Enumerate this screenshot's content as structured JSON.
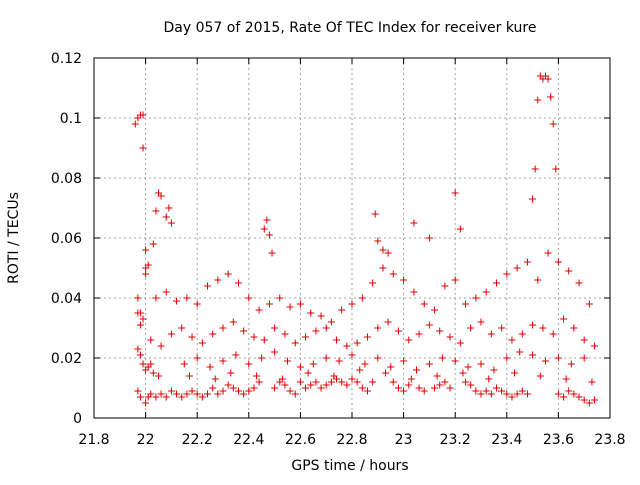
{
  "chart_data": {
    "type": "scatter",
    "title": "Day 057 of 2015, Rate Of TEC Index for receiver kure",
    "xlabel": "GPS time / hours",
    "ylabel": "ROTI / TECUs",
    "xlim": [
      21.8,
      23.8
    ],
    "ylim": [
      0,
      0.12
    ],
    "xticks": [
      "21.8",
      "22",
      "22.2",
      "22.4",
      "22.6",
      "22.8",
      "23",
      "23.2",
      "23.4",
      "23.6",
      "23.8"
    ],
    "yticks": [
      "0",
      "0.02",
      "0.04",
      "0.06",
      "0.08",
      "0.1",
      "0.12"
    ],
    "grid": true,
    "marker": "+",
    "colors": {
      "marker": "#e00000",
      "grid": "#a0a0a0",
      "axis": "#000000"
    },
    "series": [
      {
        "x": [
          21.96,
          21.97,
          21.98,
          21.99,
          21.99,
          22.0,
          21.97,
          21.98,
          21.99,
          22.0,
          22.01,
          22.03,
          22.04,
          22.05,
          22.06,
          22.08,
          22.09,
          22.1,
          21.97,
          21.98,
          21.99,
          22.0,
          22.01,
          22.02,
          22.03,
          22.05,
          21.97,
          21.98,
          22.0,
          22.01,
          22.02,
          22.04,
          22.06,
          22.08,
          22.1,
          22.12,
          22.14,
          22.16,
          22.18,
          22.2,
          22.22,
          22.24,
          22.26,
          22.28,
          22.3,
          22.32,
          22.34,
          22.36,
          22.38,
          22.4,
          22.42,
          22.44,
          22.46,
          22.47,
          22.48,
          22.49,
          22.5,
          22.52,
          22.54,
          22.56,
          22.58,
          22.6,
          22.62,
          22.64,
          22.66,
          22.68,
          22.7,
          22.72,
          22.74,
          22.76,
          22.78,
          22.8,
          22.82,
          22.84,
          22.86,
          22.88,
          22.89,
          22.9,
          22.92,
          22.94,
          22.96,
          22.98,
          23.0,
          23.02,
          23.04,
          23.06,
          23.08,
          23.1,
          23.12,
          23.14,
          23.16,
          23.18,
          23.2,
          23.22,
          23.24,
          23.26,
          23.28,
          23.3,
          23.32,
          23.34,
          23.36,
          23.38,
          23.4,
          23.42,
          23.44,
          23.46,
          23.48,
          23.5,
          23.51,
          23.52,
          23.53,
          23.54,
          23.55,
          23.56,
          23.57,
          23.58,
          23.59,
          23.6,
          23.62,
          23.64,
          23.66,
          23.68,
          23.7,
          23.72,
          23.74,
          21.97,
          22.0,
          22.04,
          22.08,
          22.12,
          22.16,
          22.2,
          22.24,
          22.28,
          22.32,
          22.36,
          22.4,
          22.44,
          22.48,
          22.52,
          22.56,
          22.6,
          22.64,
          22.68,
          22.72,
          22.76,
          22.8,
          22.84,
          22.88,
          22.92,
          22.96,
          23.0,
          23.04,
          23.08,
          23.12,
          23.16,
          23.2,
          23.24,
          23.28,
          23.32,
          23.36,
          23.4,
          23.44,
          23.48,
          23.52,
          23.56,
          23.6,
          23.64,
          23.68,
          23.72,
          21.98,
          22.02,
          22.06,
          22.1,
          22.14,
          22.18,
          22.22,
          22.26,
          22.3,
          22.34,
          22.38,
          22.42,
          22.46,
          22.5,
          22.54,
          22.58,
          22.62,
          22.66,
          22.7,
          22.74,
          22.78,
          22.82,
          22.86,
          22.9,
          22.94,
          22.98,
          23.02,
          23.06,
          23.1,
          23.14,
          23.18,
          23.22,
          23.26,
          23.3,
          23.34,
          23.38,
          23.42,
          23.46,
          23.5,
          23.54,
          23.58,
          23.62,
          23.66,
          23.7,
          23.74,
          22.15,
          22.2,
          22.25,
          22.3,
          22.35,
          22.4,
          22.45,
          22.5,
          22.55,
          22.6,
          22.65,
          22.7,
          22.75,
          22.8,
          22.85,
          22.9,
          22.95,
          23.0,
          23.05,
          23.1,
          23.15,
          23.2,
          23.25,
          23.3,
          23.35,
          23.4,
          23.45,
          23.5,
          23.55,
          23.6,
          23.65,
          23.7,
          22.17,
          22.27,
          22.33,
          22.43,
          22.53,
          22.63,
          22.73,
          22.83,
          22.93,
          23.03,
          23.13,
          23.23,
          23.33,
          23.43,
          23.53,
          23.63,
          23.73
        ],
        "y": [
          0.098,
          0.1,
          0.101,
          0.101,
          0.09,
          0.056,
          0.035,
          0.031,
          0.033,
          0.05,
          0.051,
          0.058,
          0.069,
          0.075,
          0.074,
          0.067,
          0.07,
          0.065,
          0.023,
          0.021,
          0.018,
          0.016,
          0.017,
          0.018,
          0.015,
          0.014,
          0.009,
          0.007,
          0.005,
          0.007,
          0.008,
          0.007,
          0.008,
          0.007,
          0.009,
          0.008,
          0.007,
          0.008,
          0.009,
          0.008,
          0.007,
          0.008,
          0.01,
          0.008,
          0.009,
          0.011,
          0.01,
          0.009,
          0.008,
          0.009,
          0.01,
          0.012,
          0.063,
          0.066,
          0.061,
          0.055,
          0.01,
          0.012,
          0.011,
          0.009,
          0.008,
          0.012,
          0.01,
          0.011,
          0.012,
          0.01,
          0.011,
          0.012,
          0.013,
          0.012,
          0.011,
          0.013,
          0.012,
          0.01,
          0.009,
          0.012,
          0.068,
          0.059,
          0.056,
          0.055,
          0.012,
          0.01,
          0.009,
          0.011,
          0.065,
          0.01,
          0.009,
          0.06,
          0.01,
          0.011,
          0.012,
          0.01,
          0.075,
          0.063,
          0.012,
          0.011,
          0.009,
          0.008,
          0.009,
          0.008,
          0.01,
          0.009,
          0.008,
          0.007,
          0.008,
          0.009,
          0.008,
          0.073,
          0.083,
          0.106,
          0.114,
          0.113,
          0.114,
          0.113,
          0.107,
          0.098,
          0.083,
          0.008,
          0.007,
          0.009,
          0.008,
          0.007,
          0.006,
          0.005,
          0.006,
          0.04,
          0.048,
          0.04,
          0.042,
          0.039,
          0.04,
          0.038,
          0.044,
          0.046,
          0.048,
          0.045,
          0.04,
          0.036,
          0.038,
          0.04,
          0.037,
          0.038,
          0.035,
          0.034,
          0.032,
          0.036,
          0.038,
          0.04,
          0.045,
          0.05,
          0.048,
          0.046,
          0.042,
          0.038,
          0.036,
          0.044,
          0.046,
          0.038,
          0.04,
          0.042,
          0.045,
          0.048,
          0.05,
          0.052,
          0.046,
          0.055,
          0.052,
          0.049,
          0.045,
          0.038,
          0.035,
          0.026,
          0.024,
          0.028,
          0.03,
          0.027,
          0.025,
          0.028,
          0.03,
          0.032,
          0.029,
          0.027,
          0.026,
          0.03,
          0.028,
          0.025,
          0.027,
          0.029,
          0.03,
          0.026,
          0.024,
          0.025,
          0.027,
          0.03,
          0.032,
          0.029,
          0.026,
          0.028,
          0.031,
          0.029,
          0.027,
          0.025,
          0.03,
          0.032,
          0.028,
          0.03,
          0.026,
          0.028,
          0.031,
          0.03,
          0.028,
          0.033,
          0.03,
          0.026,
          0.024,
          0.018,
          0.02,
          0.017,
          0.019,
          0.021,
          0.018,
          0.02,
          0.022,
          0.019,
          0.017,
          0.018,
          0.02,
          0.019,
          0.021,
          0.018,
          0.02,
          0.017,
          0.019,
          0.016,
          0.018,
          0.02,
          0.019,
          0.017,
          0.018,
          0.016,
          0.02,
          0.022,
          0.021,
          0.019,
          0.02,
          0.018,
          0.02,
          0.014,
          0.013,
          0.015,
          0.014,
          0.013,
          0.015,
          0.014,
          0.016,
          0.015,
          0.013,
          0.014,
          0.015,
          0.013,
          0.015,
          0.014,
          0.013,
          0.012
        ]
      }
    ]
  }
}
